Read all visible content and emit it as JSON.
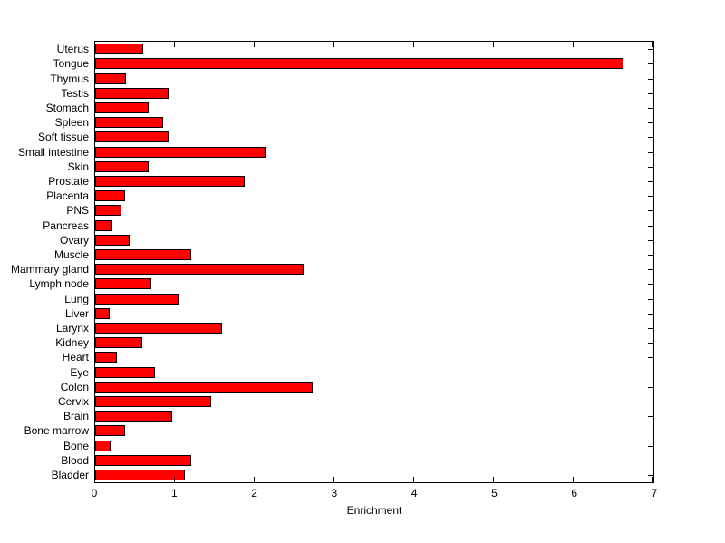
{
  "figure": {
    "background_color": "#FFFFFF",
    "axis_color": "#000000"
  },
  "chart_data": {
    "type": "bar",
    "orientation": "horizontal",
    "title": "",
    "xlabel": "Enrichment",
    "ylabel": "",
    "xlim": [
      0,
      7
    ],
    "xticks": [
      "0",
      "1",
      "2",
      "3",
      "4",
      "5",
      "6",
      "7"
    ],
    "xtick_values": [
      0,
      1,
      2,
      3,
      4,
      5,
      6,
      7
    ],
    "grid": false,
    "legend": "none",
    "bar_color": "#FF0000",
    "bar_edge_color": "#000000",
    "categories": [
      "Uterus",
      "Tongue",
      "Thymus",
      "Testis",
      "Stomach",
      "Spleen",
      "Soft tissue",
      "Small intestine",
      "Skin",
      "Prostate",
      "Placenta",
      "PNS",
      "Pancreas",
      "Ovary",
      "Muscle",
      "Mammary gland",
      "Lymph node",
      "Lung",
      "Liver",
      "Larynx",
      "Kidney",
      "Heart",
      "Eye",
      "Colon",
      "Cervix",
      "Brain",
      "Bone marrow",
      "Bone",
      "Blood",
      "Bladder"
    ],
    "values": [
      0.6,
      6.63,
      0.39,
      0.92,
      0.67,
      0.85,
      0.92,
      2.14,
      0.67,
      1.87,
      0.37,
      0.33,
      0.22,
      0.43,
      1.2,
      2.61,
      0.7,
      1.04,
      0.18,
      1.59,
      0.59,
      0.27,
      0.75,
      2.73,
      1.46,
      0.97,
      0.37,
      0.19,
      1.2,
      1.13
    ]
  }
}
